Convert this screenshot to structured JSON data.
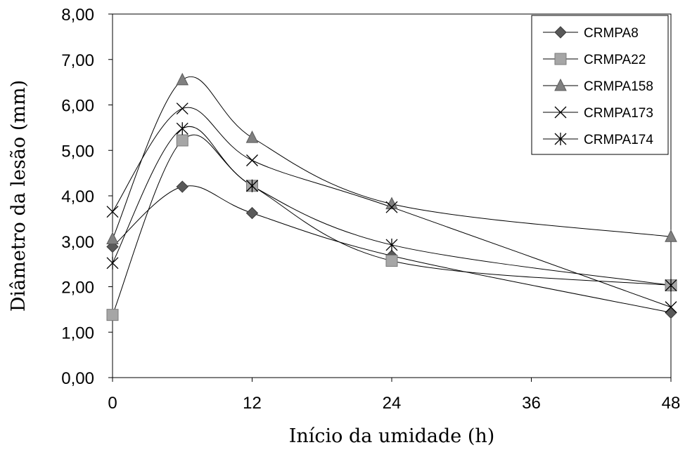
{
  "chart_data": {
    "type": "line",
    "title": "",
    "xlabel": "Início da umidade  (h)",
    "ylabel": "Diâmetro da lesão (mm)",
    "x": [
      0,
      6,
      12,
      24,
      48
    ],
    "xlim": [
      0,
      48
    ],
    "ylim": [
      0,
      8
    ],
    "xticks": [
      0,
      12,
      24,
      36,
      48
    ],
    "xtick_labels": [
      "0",
      "12",
      "24",
      "36",
      "48"
    ],
    "yticks": [
      0,
      1,
      2,
      3,
      4,
      5,
      6,
      7,
      8
    ],
    "ytick_labels": [
      "0,00",
      "1,00",
      "2,00",
      "3,00",
      "4,00",
      "5,00",
      "6,00",
      "7,00",
      "8,00"
    ],
    "grid": false,
    "legend_position": "top-right",
    "smooth": true,
    "series": [
      {
        "name": "CRMPA8",
        "marker": "diamond",
        "color": "#595959",
        "values": [
          2.88,
          4.2,
          3.62,
          2.68,
          1.43
        ]
      },
      {
        "name": "CRMPA22",
        "marker": "square",
        "color": "#a6a6a6",
        "values": [
          1.38,
          5.22,
          4.22,
          2.57,
          2.03
        ]
      },
      {
        "name": "CRMPA158",
        "marker": "triangle",
        "color": "#808080",
        "values": [
          3.05,
          6.55,
          5.28,
          3.82,
          3.1
        ]
      },
      {
        "name": "CRMPA173",
        "marker": "x",
        "color": "#000000",
        "values": [
          3.65,
          5.92,
          4.78,
          3.75,
          1.55
        ]
      },
      {
        "name": "CRMPA174",
        "marker": "asterisk",
        "color": "#000000",
        "values": [
          2.52,
          5.48,
          4.22,
          2.92,
          2.03
        ]
      }
    ]
  }
}
